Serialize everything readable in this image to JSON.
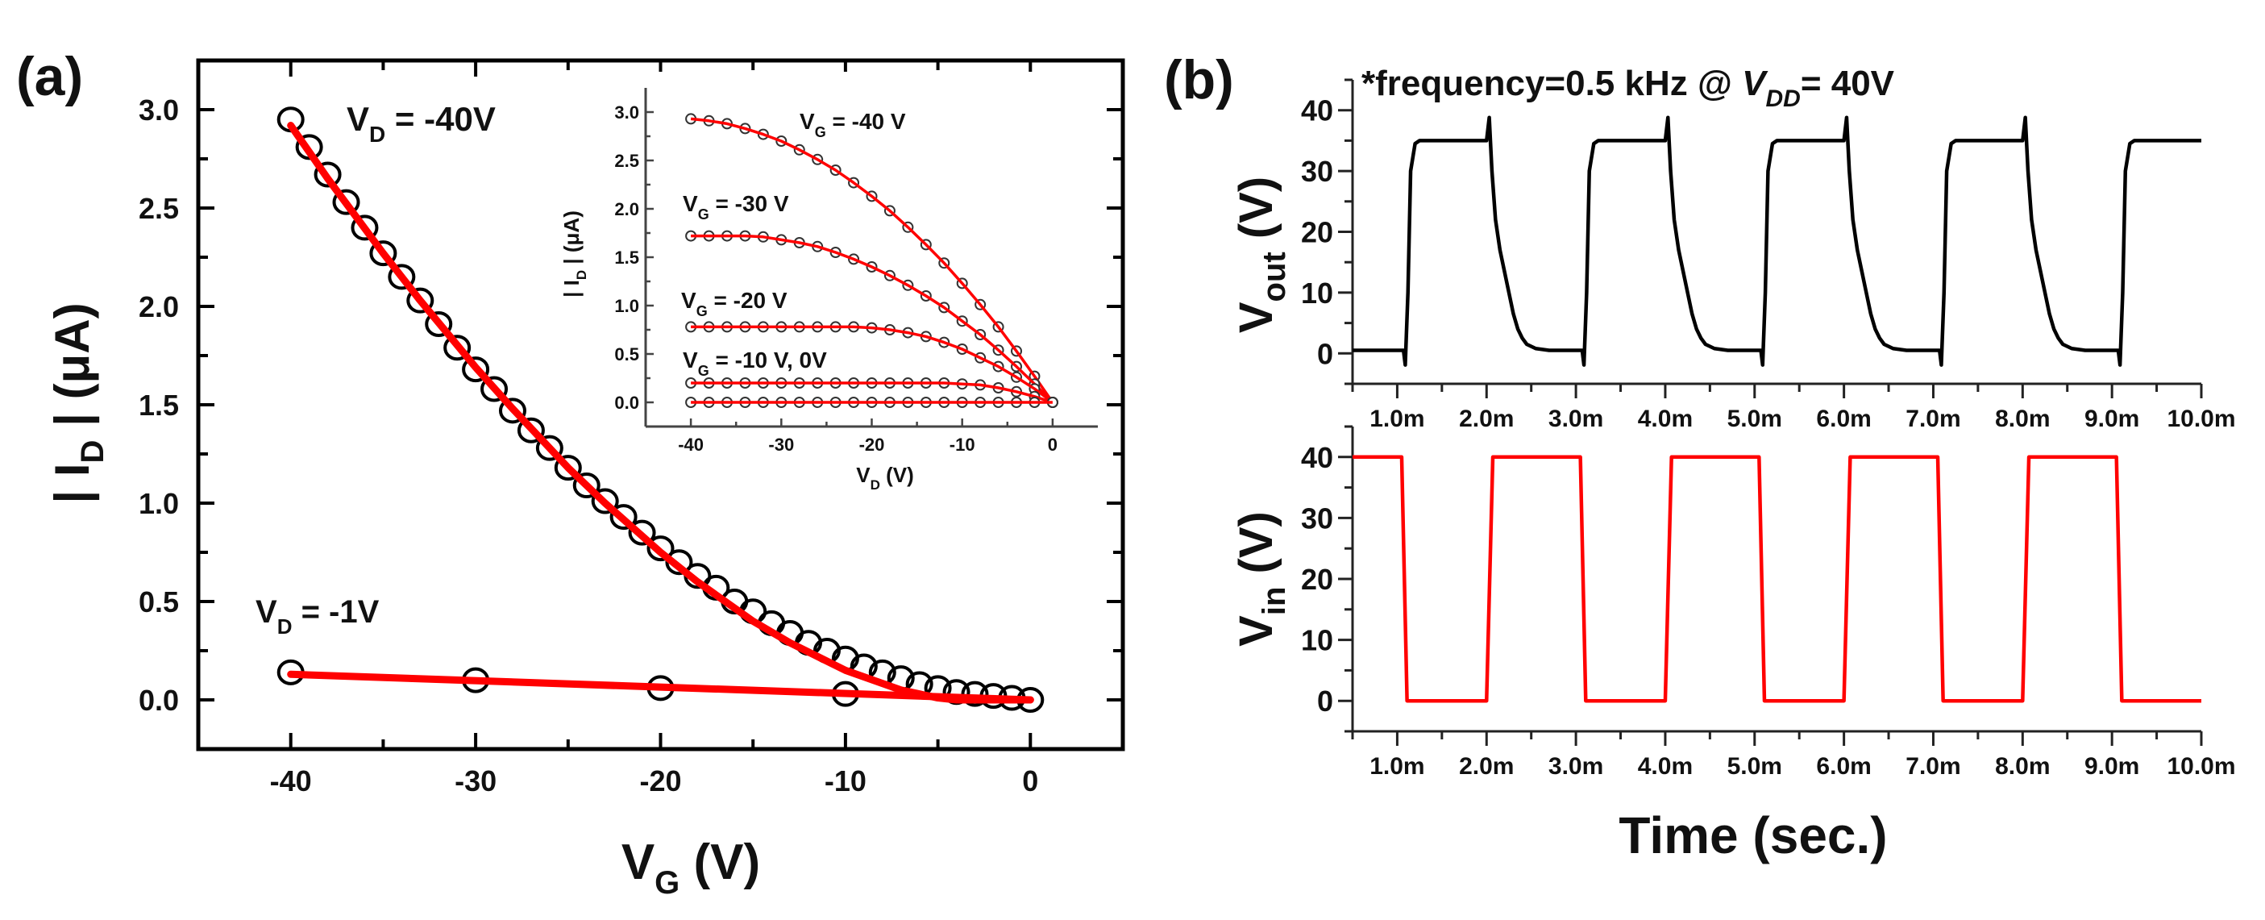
{
  "panel_a": {
    "label": "(a)"
  },
  "panel_b": {
    "label": "(b)",
    "note": {
      "pre": "*frequency=0.5 kHz @ ",
      "v": "V",
      "sub": "DD",
      "post": "= 40V"
    }
  },
  "colors": {
    "data": "#000000",
    "fit": "#ff0000",
    "vout": "#000000",
    "vin": "#ff0000"
  },
  "chart_data": [
    {
      "id": "transfer",
      "type": "scatter",
      "title": "",
      "xlabel": {
        "main": "V",
        "sub": "G",
        "rest": " (V)"
      },
      "ylabel": {
        "pre": "| I",
        "sub": "D",
        "rest": " | (μA)"
      },
      "xlim": [
        -45,
        5
      ],
      "ylim": [
        -0.25,
        3.25
      ],
      "xticks": [
        -40,
        -30,
        -20,
        -10,
        0
      ],
      "xtick_labels": [
        "-40",
        "-30",
        "-20",
        "-10",
        "0"
      ],
      "yticks": [
        0,
        0.5,
        1.0,
        1.5,
        2.0,
        2.5,
        3.0
      ],
      "ytick_labels": [
        "0.0",
        "0.5",
        "1.0",
        "1.5",
        "2.0",
        "2.5",
        "3.0"
      ],
      "series": [
        {
          "name": "V_D = -40V",
          "label": {
            "main": "V",
            "sub": "D",
            "rest": " = -40V"
          },
          "x": [
            -40,
            -39,
            -38,
            -37,
            -36,
            -35,
            -34,
            -33,
            -32,
            -31,
            -30,
            -29,
            -28,
            -27,
            -26,
            -25,
            -24,
            -23,
            -22,
            -21,
            -20,
            -19,
            -18,
            -17,
            -16,
            -15,
            -14,
            -13,
            -12,
            -11,
            -10,
            -9,
            -8,
            -7,
            -6,
            -5,
            -4,
            -3,
            -2,
            -1,
            0
          ],
          "y": [
            2.95,
            2.81,
            2.67,
            2.53,
            2.4,
            2.27,
            2.15,
            2.03,
            1.91,
            1.79,
            1.68,
            1.58,
            1.47,
            1.37,
            1.28,
            1.18,
            1.09,
            1.01,
            0.93,
            0.85,
            0.77,
            0.7,
            0.63,
            0.57,
            0.5,
            0.45,
            0.39,
            0.34,
            0.29,
            0.25,
            0.21,
            0.17,
            0.14,
            0.11,
            0.08,
            0.06,
            0.04,
            0.03,
            0.02,
            0.01,
            0.0
          ],
          "fit": {
            "x": [
              -40,
              -38,
              -35,
              -33,
              -30,
              -28,
              -25,
              -23,
              -20,
              -18,
              -15,
              -13,
              -10,
              -7,
              -5,
              -4,
              0
            ],
            "y": [
              2.92,
              2.65,
              2.27,
              2.03,
              1.69,
              1.48,
              1.18,
              1.0,
              0.75,
              0.6,
              0.4,
              0.29,
              0.15,
              0.05,
              0.01,
              0,
              0
            ]
          }
        },
        {
          "name": "V_D = -1V",
          "label": {
            "main": "V",
            "sub": "D",
            "rest": " = -1V"
          },
          "x": [
            -40,
            -30,
            -20,
            -10
          ],
          "y": [
            0.14,
            0.1,
            0.06,
            0.03
          ],
          "fit": {
            "x": [
              -40,
              0
            ],
            "y": [
              0.13,
              0.0
            ]
          }
        }
      ]
    },
    {
      "id": "inset-output",
      "type": "scatter",
      "title": "",
      "xlabel": {
        "main": "V",
        "sub": "D",
        "rest": " (V)"
      },
      "ylabel": {
        "pre": "| I",
        "sub": "D",
        "rest": " | (μA)"
      },
      "xlim": [
        -45,
        5
      ],
      "ylim": [
        -0.25,
        3.25
      ],
      "xticks": [
        -40,
        -30,
        -20,
        -10,
        0
      ],
      "xtick_labels": [
        "-40",
        "-30",
        "-20",
        "-10",
        "0"
      ],
      "yticks": [
        0,
        0.5,
        1.0,
        1.5,
        2.0,
        2.5,
        3.0
      ],
      "ytick_labels": [
        "0.0",
        "0.5",
        "1.0",
        "1.5",
        "2.0",
        "2.5",
        "3.0"
      ],
      "x": [
        -40,
        -38,
        -36,
        -34,
        -32,
        -30,
        -28,
        -26,
        -24,
        -22,
        -20,
        -18,
        -16,
        -14,
        -12,
        -10,
        -8,
        -6,
        -4,
        -2,
        0
      ],
      "series": [
        {
          "name": "V_G = -40 V",
          "label": {
            "main": "V",
            "sub": "G",
            "rest": " = -40 V"
          },
          "y": [
            2.93,
            2.91,
            2.88,
            2.83,
            2.77,
            2.7,
            2.61,
            2.51,
            2.4,
            2.27,
            2.13,
            1.98,
            1.81,
            1.63,
            1.44,
            1.23,
            1.01,
            0.78,
            0.53,
            0.27,
            0
          ]
        },
        {
          "name": "V_G = -30 V",
          "label": {
            "main": "V",
            "sub": "G",
            "rest": " = -30 V"
          },
          "y": [
            1.72,
            1.72,
            1.72,
            1.72,
            1.71,
            1.68,
            1.65,
            1.61,
            1.55,
            1.48,
            1.4,
            1.31,
            1.21,
            1.1,
            0.98,
            0.84,
            0.7,
            0.54,
            0.37,
            0.19,
            0
          ]
        },
        {
          "name": "V_G = -20 V",
          "label": {
            "main": "V",
            "sub": "G",
            "rest": " = -20 V"
          },
          "y": [
            0.78,
            0.78,
            0.78,
            0.78,
            0.78,
            0.78,
            0.78,
            0.78,
            0.78,
            0.78,
            0.77,
            0.75,
            0.72,
            0.68,
            0.62,
            0.55,
            0.46,
            0.37,
            0.26,
            0.14,
            0
          ]
        },
        {
          "name": "V_G = -10 V",
          "label": {
            "main": "V",
            "sub": "G",
            "rest": " = -10 V, 0V"
          },
          "y": [
            0.2,
            0.2,
            0.2,
            0.2,
            0.2,
            0.2,
            0.2,
            0.2,
            0.2,
            0.2,
            0.2,
            0.2,
            0.2,
            0.2,
            0.2,
            0.19,
            0.18,
            0.15,
            0.11,
            0.06,
            0
          ]
        },
        {
          "name": "V_G = 0V",
          "label": null,
          "y": [
            0,
            0,
            0,
            0,
            0,
            0,
            0,
            0,
            0,
            0,
            0,
            0,
            0,
            0,
            0,
            0,
            0,
            0,
            0,
            0,
            0
          ]
        }
      ]
    },
    {
      "id": "vout",
      "type": "line",
      "title": "",
      "ylabel": {
        "main": "V",
        "sub": "out",
        "rest": " (V)"
      },
      "xlim": [
        0.5,
        10
      ],
      "ylim": [
        -5,
        45
      ],
      "xticks": [
        1,
        2,
        3,
        4,
        5,
        6,
        7,
        8,
        9,
        10
      ],
      "xtick_labels": [
        "1.0m",
        "2.0m",
        "3.0m",
        "4.0m",
        "5.0m",
        "6.0m",
        "7.0m",
        "8.0m",
        "9.0m",
        "10.0m"
      ],
      "yticks": [
        0,
        10,
        20,
        30,
        40
      ],
      "ytick_labels": [
        "0",
        "10",
        "20",
        "30",
        "40"
      ],
      "x_unit": "ms",
      "points": [
        [
          0.5,
          0.5
        ],
        [
          1.07,
          0.5
        ],
        [
          1.09,
          -1.9
        ],
        [
          1.12,
          10
        ],
        [
          1.15,
          30
        ],
        [
          1.2,
          34.5
        ],
        [
          1.25,
          35
        ],
        [
          2.0,
          35
        ],
        [
          2.03,
          38.8
        ],
        [
          2.06,
          30
        ],
        [
          2.1,
          22
        ],
        [
          2.15,
          17
        ],
        [
          2.2,
          13.5
        ],
        [
          2.25,
          10
        ],
        [
          2.3,
          6.5
        ],
        [
          2.35,
          4
        ],
        [
          2.4,
          2.5
        ],
        [
          2.45,
          1.5
        ],
        [
          2.55,
          0.8
        ],
        [
          2.7,
          0.5
        ],
        [
          3.07,
          0.5
        ],
        [
          3.09,
          -1.9
        ],
        [
          3.12,
          10
        ],
        [
          3.15,
          30
        ],
        [
          3.2,
          34.5
        ],
        [
          3.25,
          35
        ],
        [
          4.0,
          35
        ],
        [
          4.03,
          38.8
        ],
        [
          4.06,
          30
        ],
        [
          4.1,
          22
        ],
        [
          4.15,
          17
        ],
        [
          4.2,
          13.5
        ],
        [
          4.25,
          10
        ],
        [
          4.3,
          6.5
        ],
        [
          4.35,
          4
        ],
        [
          4.4,
          2.5
        ],
        [
          4.45,
          1.5
        ],
        [
          4.55,
          0.8
        ],
        [
          4.7,
          0.5
        ],
        [
          5.07,
          0.5
        ],
        [
          5.09,
          -1.9
        ],
        [
          5.12,
          10
        ],
        [
          5.15,
          30
        ],
        [
          5.2,
          34.5
        ],
        [
          5.25,
          35
        ],
        [
          6.0,
          35
        ],
        [
          6.03,
          38.8
        ],
        [
          6.06,
          30
        ],
        [
          6.1,
          22
        ],
        [
          6.15,
          17
        ],
        [
          6.2,
          13.5
        ],
        [
          6.25,
          10
        ],
        [
          6.3,
          6.5
        ],
        [
          6.35,
          4
        ],
        [
          6.4,
          2.5
        ],
        [
          6.45,
          1.5
        ],
        [
          6.55,
          0.8
        ],
        [
          6.7,
          0.5
        ],
        [
          7.07,
          0.5
        ],
        [
          7.09,
          -1.9
        ],
        [
          7.12,
          10
        ],
        [
          7.15,
          30
        ],
        [
          7.2,
          34.5
        ],
        [
          7.25,
          35
        ],
        [
          8.0,
          35
        ],
        [
          8.03,
          38.8
        ],
        [
          8.06,
          30
        ],
        [
          8.1,
          22
        ],
        [
          8.15,
          17
        ],
        [
          8.2,
          13.5
        ],
        [
          8.25,
          10
        ],
        [
          8.3,
          6.5
        ],
        [
          8.35,
          4
        ],
        [
          8.4,
          2.5
        ],
        [
          8.45,
          1.5
        ],
        [
          8.55,
          0.8
        ],
        [
          8.7,
          0.5
        ],
        [
          9.07,
          0.5
        ],
        [
          9.09,
          -1.9
        ],
        [
          9.12,
          10
        ],
        [
          9.15,
          30
        ],
        [
          9.2,
          34.5
        ],
        [
          9.25,
          35
        ],
        [
          10,
          35
        ]
      ]
    },
    {
      "id": "vin",
      "type": "line",
      "title": "",
      "xlabel": "Time (sec.)",
      "ylabel": {
        "main": "V",
        "sub": "in",
        "rest": " (V)"
      },
      "xlim": [
        0.5,
        10
      ],
      "ylim": [
        -5,
        45
      ],
      "xticks": [
        1,
        2,
        3,
        4,
        5,
        6,
        7,
        8,
        9,
        10
      ],
      "xtick_labels": [
        "1.0m",
        "2.0m",
        "3.0m",
        "4.0m",
        "5.0m",
        "6.0m",
        "7.0m",
        "8.0m",
        "9.0m",
        "10.0m"
      ],
      "yticks": [
        0,
        10,
        20,
        30,
        40
      ],
      "ytick_labels": [
        "0",
        "10",
        "20",
        "30",
        "40"
      ],
      "x_unit": "ms",
      "points": [
        [
          0.5,
          40
        ],
        [
          1.05,
          40
        ],
        [
          1.11,
          0
        ],
        [
          2.0,
          0
        ],
        [
          2.07,
          40
        ],
        [
          3.05,
          40
        ],
        [
          3.11,
          0
        ],
        [
          4.0,
          0
        ],
        [
          4.07,
          40
        ],
        [
          5.05,
          40
        ],
        [
          5.11,
          0
        ],
        [
          6.0,
          0
        ],
        [
          6.07,
          40
        ],
        [
          7.05,
          40
        ],
        [
          7.11,
          0
        ],
        [
          8.0,
          0
        ],
        [
          8.07,
          40
        ],
        [
          9.05,
          40
        ],
        [
          9.11,
          0
        ],
        [
          10,
          0
        ]
      ]
    }
  ]
}
